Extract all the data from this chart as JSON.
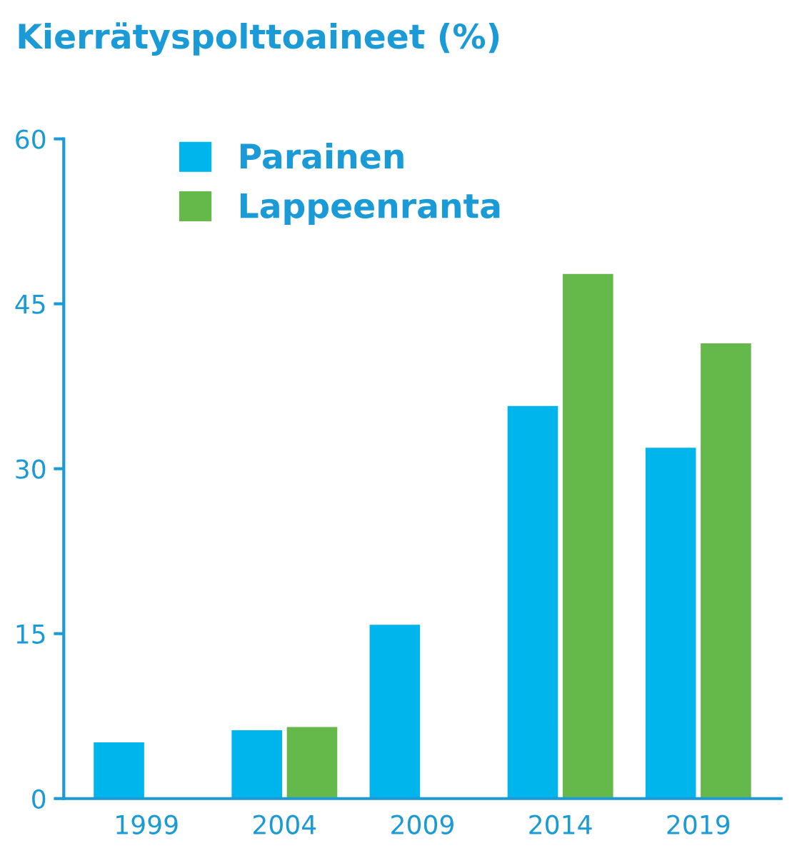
{
  "chart_data": {
    "type": "bar",
    "title": "Kierrätyspolttoaineet (%)",
    "categories": [
      "1999",
      "2004",
      "2009",
      "2014",
      "2019"
    ],
    "series": [
      {
        "name": "Parainen",
        "color": "#00b5ec",
        "values": [
          5.2,
          6.3,
          15.9,
          35.8,
          32.0
        ]
      },
      {
        "name": "Lappeenranta",
        "color": "#65b94a",
        "values": [
          null,
          6.6,
          null,
          47.8,
          41.5
        ]
      }
    ],
    "ylim": [
      0,
      60
    ],
    "yticks": [
      0,
      15,
      30,
      45,
      60
    ],
    "grid": false,
    "legend": "top left"
  }
}
